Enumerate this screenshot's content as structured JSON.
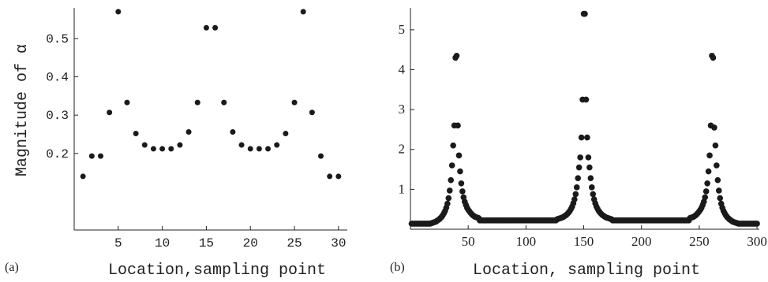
{
  "chart_data": [
    {
      "type": "scatter",
      "panel_label": "(a)",
      "xlabel": "Location,sampling point",
      "ylabel": "Magnitude of α",
      "xlim": [
        0,
        31
      ],
      "ylim": [
        0.0,
        0.58
      ],
      "x_ticks": [
        5,
        10,
        15,
        20,
        25,
        30
      ],
      "y_ticks": [
        0.2,
        0.3,
        0.4,
        0.5
      ],
      "y_tick_labels": [
        "0.2",
        "0.3",
        "0.4",
        "0.5"
      ],
      "grid": false,
      "points": [
        [
          1,
          0.14
        ],
        [
          2,
          0.193
        ],
        [
          3,
          0.193
        ],
        [
          4,
          0.307
        ],
        [
          5,
          0.57
        ],
        [
          6,
          0.333
        ],
        [
          7,
          0.252
        ],
        [
          8,
          0.222
        ],
        [
          9,
          0.212
        ],
        [
          10,
          0.212
        ],
        [
          11,
          0.212
        ],
        [
          12,
          0.222
        ],
        [
          13,
          0.256
        ],
        [
          14,
          0.333
        ],
        [
          15,
          0.528
        ],
        [
          16,
          0.528
        ],
        [
          17,
          0.333
        ],
        [
          18,
          0.256
        ],
        [
          19,
          0.222
        ],
        [
          20,
          0.212
        ],
        [
          21,
          0.212
        ],
        [
          22,
          0.212
        ],
        [
          23,
          0.222
        ],
        [
          24,
          0.252
        ],
        [
          25,
          0.333
        ],
        [
          26,
          0.57
        ],
        [
          27,
          0.307
        ],
        [
          28,
          0.193
        ],
        [
          29,
          0.14
        ],
        [
          30,
          0.14
        ]
      ]
    },
    {
      "type": "scatter",
      "panel_label": "(b)",
      "xlabel": "Location, sampling point",
      "ylabel": "",
      "xlim": [
        0,
        302
      ],
      "ylim": [
        0.0,
        5.55
      ],
      "x_ticks": [
        50,
        100,
        150,
        200,
        250,
        300
      ],
      "y_ticks": [
        1,
        2,
        3,
        4,
        5
      ],
      "y_tick_labels": [
        "1",
        "2",
        "3",
        "4",
        "5"
      ],
      "grid": false,
      "peaks": [
        {
          "center": 39.5,
          "left": [
            0.14,
            0.14,
            0.15,
            0.16,
            0.17,
            0.18,
            0.19,
            0.21,
            0.23,
            0.25,
            0.28,
            0.31,
            0.35,
            0.4,
            0.46,
            0.54,
            0.64,
            0.78,
            0.97,
            1.23,
            1.6,
            2.1,
            2.6,
            4.3
          ],
          "right": [
            4.35,
            2.6,
            1.85,
            1.45,
            1.15,
            0.95,
            0.8,
            0.69,
            0.61,
            0.54,
            0.49,
            0.45,
            0.41,
            0.38,
            0.35,
            0.33,
            0.31,
            0.3,
            0.29,
            0.28
          ]
        },
        {
          "center": 150.5,
          "left": [
            0.25,
            0.26,
            0.27,
            0.28,
            0.29,
            0.3,
            0.32,
            0.34,
            0.36,
            0.39,
            0.42,
            0.46,
            0.51,
            0.57,
            0.65,
            0.75,
            0.88,
            1.05,
            1.28,
            1.55,
            1.8,
            2.3,
            3.25,
            5.4
          ],
          "right": [
            5.4,
            3.25,
            2.3,
            1.8,
            1.55,
            1.28,
            1.05,
            0.88,
            0.75,
            0.65,
            0.57,
            0.51,
            0.46,
            0.42,
            0.39,
            0.36,
            0.34,
            0.32,
            0.3,
            0.29,
            0.28,
            0.27,
            0.26,
            0.25
          ]
        },
        {
          "center": 261.5,
          "left": [
            0.28,
            0.29,
            0.3,
            0.31,
            0.33,
            0.35,
            0.38,
            0.41,
            0.45,
            0.49,
            0.54,
            0.61,
            0.69,
            0.8,
            0.95,
            1.15,
            1.45,
            1.85,
            2.6,
            4.35
          ],
          "right": [
            4.3,
            2.55,
            2.1,
            1.6,
            1.23,
            0.97,
            0.78,
            0.64,
            0.54,
            0.46,
            0.4,
            0.35,
            0.31,
            0.28,
            0.25,
            0.23,
            0.21,
            0.19,
            0.18,
            0.17,
            0.16,
            0.15,
            0.14,
            0.14,
            0.14,
            0.14,
            0.14,
            0.14,
            0.14,
            0.14,
            0.14,
            0.14,
            0.14,
            0.14,
            0.14,
            0.14,
            0.14,
            0.14,
            0.14
          ]
        }
      ],
      "baseline": 0.22,
      "edge_left_value": 0.14
    }
  ]
}
